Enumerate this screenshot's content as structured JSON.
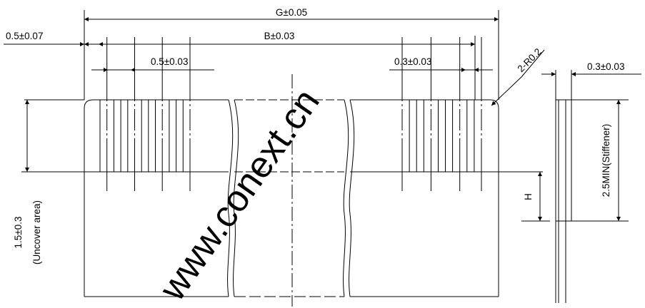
{
  "watermark": "www.conext.cn",
  "dimensions": {
    "g": "G±0.05",
    "b": "B±0.03",
    "edge": "0.5±0.07",
    "pitch": "0.5±0.03",
    "lead_width": "0.3±0.03",
    "radius": "2-R0.2",
    "thickness": "0.3±0.03",
    "stiffener": "2.5MIN(Stiffener)",
    "h": "H",
    "uncover_value": "1.5±0.3",
    "uncover_label": "(Uncover area)"
  },
  "leads": {
    "left_count": 14,
    "right_count": 12
  }
}
